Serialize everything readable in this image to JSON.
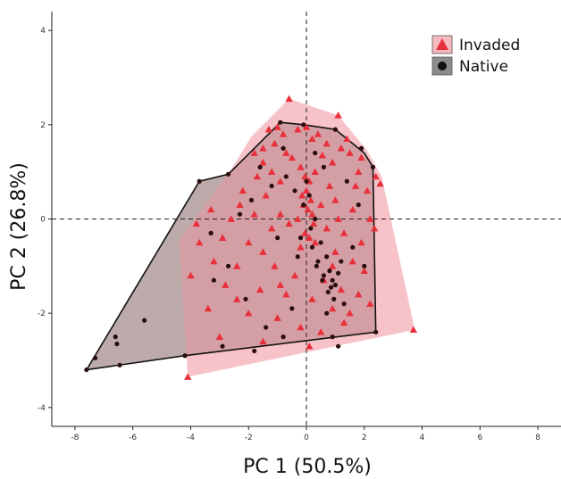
{
  "chart_data": {
    "type": "scatter",
    "xlabel": "PC 1 (50.5%)",
    "ylabel": "PC 2 (26.8%)",
    "xlim": [
      -8.8,
      8.8
    ],
    "ylim": [
      -4.4,
      4.4
    ],
    "x_ticks": [
      -8,
      -6,
      -4,
      -2,
      0,
      2,
      4,
      6,
      8
    ],
    "y_ticks": [
      -4,
      -2,
      0,
      2,
      4
    ],
    "x_tick_labels": [
      "-8",
      "-6",
      "-4",
      "-2",
      "0",
      "2",
      "4",
      "6",
      "8"
    ],
    "y_tick_labels": [
      "-4",
      "-2",
      "0",
      "2",
      "4"
    ],
    "reference_lines": {
      "x": 0,
      "y": 0,
      "style": "dashed"
    },
    "grid": false,
    "legend_position": "top-right",
    "series": [
      {
        "name": "Invaded",
        "marker": "triangle",
        "color": "#e8303c",
        "fill_color": "#f6b9bf",
        "hull": [
          [
            -4.1,
            -3.35
          ],
          [
            3.75,
            -2.35
          ],
          [
            2.6,
            0.9
          ],
          [
            2.1,
            1.45
          ],
          [
            1.1,
            2.2
          ],
          [
            -0.6,
            2.55
          ],
          [
            -1.9,
            1.75
          ],
          [
            -2.6,
            1.05
          ],
          [
            -4.4,
            -0.45
          ]
        ],
        "points": [
          [
            -0.6,
            2.55
          ],
          [
            1.1,
            2.2
          ],
          [
            3.7,
            -2.35
          ],
          [
            -4.1,
            -3.35
          ],
          [
            2.55,
            0.75
          ],
          [
            2.4,
            0.9
          ],
          [
            -0.3,
            1.9
          ],
          [
            -0.8,
            1.8
          ],
          [
            -1.1,
            1.6
          ],
          [
            -1.5,
            1.5
          ],
          [
            -1.8,
            1.4
          ],
          [
            0.2,
            1.7
          ],
          [
            0.7,
            1.6
          ],
          [
            1.2,
            1.5
          ],
          [
            1.5,
            1.4
          ],
          [
            -0.5,
            1.3
          ],
          [
            0.9,
            1.2
          ],
          [
            -1.2,
            1.0
          ],
          [
            -0.2,
            1.1
          ],
          [
            0.3,
            1.0
          ],
          [
            1.8,
            1.0
          ],
          [
            -1.7,
            0.9
          ],
          [
            -0.9,
            0.8
          ],
          [
            0.8,
            0.7
          ],
          [
            2.1,
            0.6
          ],
          [
            -2.2,
            0.6
          ],
          [
            -1.4,
            0.5
          ],
          [
            0.0,
            0.6
          ],
          [
            0.15,
            0.4
          ],
          [
            -0.1,
            0.3
          ],
          [
            0.05,
            0.2
          ],
          [
            -0.3,
            0.0
          ],
          [
            0.2,
            0.1
          ],
          [
            0.5,
            0.3
          ],
          [
            1.0,
            0.4
          ],
          [
            1.6,
            0.2
          ],
          [
            2.2,
            0.0
          ],
          [
            -1.8,
            0.1
          ],
          [
            -2.6,
            0.0
          ],
          [
            -3.3,
            0.2
          ],
          [
            -3.8,
            -0.1
          ],
          [
            -1.2,
            -0.2
          ],
          [
            -0.6,
            -0.1
          ],
          [
            0.7,
            -0.2
          ],
          [
            1.3,
            -0.3
          ],
          [
            1.9,
            -0.5
          ],
          [
            -2.0,
            -0.5
          ],
          [
            -0.2,
            -0.6
          ],
          [
            0.3,
            -0.5
          ],
          [
            1.0,
            -0.7
          ],
          [
            1.6,
            -0.9
          ],
          [
            2.0,
            -1.1
          ],
          [
            -3.2,
            -0.9
          ],
          [
            -2.4,
            -1.0
          ],
          [
            -1.1,
            -1.0
          ],
          [
            -0.4,
            -1.2
          ],
          [
            0.6,
            -1.3
          ],
          [
            1.2,
            -1.5
          ],
          [
            1.8,
            -1.6
          ],
          [
            -2.8,
            -1.4
          ],
          [
            -1.6,
            -1.5
          ],
          [
            -0.7,
            -1.6
          ],
          [
            0.2,
            -1.7
          ],
          [
            0.9,
            -1.9
          ],
          [
            -3.4,
            -1.9
          ],
          [
            -2.0,
            -2.0
          ],
          [
            -1.0,
            -2.1
          ],
          [
            -0.2,
            -2.3
          ],
          [
            0.5,
            -2.4
          ],
          [
            1.3,
            -2.2
          ],
          [
            -3.0,
            -2.5
          ],
          [
            -1.5,
            -2.6
          ],
          [
            0.1,
            -2.7
          ],
          [
            -0.05,
            0.9
          ],
          [
            0.1,
            0.8
          ],
          [
            -0.15,
            0.5
          ],
          [
            0.25,
            -0.1
          ],
          [
            -0.05,
            -0.3
          ],
          [
            0.1,
            -0.4
          ],
          [
            -1.3,
            1.9
          ],
          [
            -1.0,
            1.95
          ],
          [
            0.4,
            1.8
          ],
          [
            0.0,
            1.95
          ],
          [
            1.4,
            1.7
          ],
          [
            1.9,
            1.3
          ],
          [
            -1.5,
            1.2
          ],
          [
            -0.7,
            1.4
          ],
          [
            0.55,
            1.35
          ],
          [
            1.7,
            0.7
          ],
          [
            -2.3,
            0.3
          ],
          [
            -0.9,
            0.1
          ],
          [
            1.1,
            0.0
          ],
          [
            2.35,
            -0.2
          ],
          [
            -2.9,
            -0.4
          ],
          [
            -1.5,
            -0.7
          ],
          [
            0.9,
            -1.0
          ],
          [
            -0.9,
            -1.4
          ],
          [
            1.5,
            -2.0
          ],
          [
            -2.4,
            -1.7
          ],
          [
            -3.7,
            -0.5
          ],
          [
            -4.0,
            -1.2
          ],
          [
            2.2,
            -1.8
          ]
        ]
      },
      {
        "name": "Native",
        "marker": "circle",
        "color": "#2a0d0f",
        "fill_color": "#c9c9c9",
        "hull": [
          [
            -7.6,
            -3.2
          ],
          [
            -4.2,
            -2.9
          ],
          [
            2.4,
            -2.4
          ],
          [
            2.3,
            1.1
          ],
          [
            2.0,
            1.4
          ],
          [
            1.0,
            1.9
          ],
          [
            -0.1,
            2.0
          ],
          [
            -0.9,
            2.05
          ],
          [
            -2.7,
            0.95
          ],
          [
            -3.7,
            0.8
          ]
        ],
        "points": [
          [
            -7.6,
            -3.2
          ],
          [
            -7.3,
            -2.95
          ],
          [
            -6.6,
            -2.5
          ],
          [
            -6.55,
            -2.65
          ],
          [
            -6.45,
            -3.1
          ],
          [
            -5.6,
            -2.15
          ],
          [
            -3.7,
            0.8
          ],
          [
            -0.9,
            2.05
          ],
          [
            -0.1,
            2.0
          ],
          [
            2.3,
            1.1
          ],
          [
            2.4,
            -2.4
          ],
          [
            1.0,
            1.9
          ],
          [
            -2.7,
            0.95
          ],
          [
            -4.2,
            -2.9
          ],
          [
            -3.3,
            -0.3
          ],
          [
            -2.1,
            -1.7
          ],
          [
            -0.8,
            1.5
          ],
          [
            0.3,
            1.4
          ],
          [
            0.6,
            1.1
          ],
          [
            -0.4,
            0.6
          ],
          [
            0.1,
            0.5
          ],
          [
            -0.1,
            0.3
          ],
          [
            0.3,
            0.0
          ],
          [
            0.5,
            -0.5
          ],
          [
            0.7,
            -0.8
          ],
          [
            0.8,
            -1.1
          ],
          [
            0.9,
            -1.3
          ],
          [
            1.0,
            -1.4
          ],
          [
            0.6,
            -1.2
          ],
          [
            0.4,
            -0.9
          ],
          [
            0.2,
            -0.6
          ],
          [
            -0.3,
            -0.8
          ],
          [
            -1.0,
            -0.4
          ],
          [
            -1.9,
            0.4
          ],
          [
            -2.3,
            0.1
          ],
          [
            1.4,
            0.8
          ],
          [
            1.8,
            0.3
          ],
          [
            1.6,
            -0.6
          ],
          [
            2.0,
            -1.0
          ],
          [
            1.3,
            -1.8
          ],
          [
            0.7,
            -2.0
          ],
          [
            -0.5,
            -1.9
          ],
          [
            -1.4,
            -2.3
          ],
          [
            -0.8,
            -2.5
          ],
          [
            0.9,
            -2.5
          ],
          [
            1.1,
            -2.7
          ],
          [
            -0.7,
            0.9
          ],
          [
            0.0,
            0.8
          ],
          [
            0.15,
            -0.2
          ],
          [
            -0.2,
            -0.4
          ],
          [
            0.35,
            -1.0
          ],
          [
            0.55,
            -1.3
          ],
          [
            0.75,
            -1.55
          ],
          [
            0.95,
            -1.7
          ],
          [
            0.85,
            -1.45
          ],
          [
            1.1,
            -1.15
          ],
          [
            1.2,
            -0.9
          ],
          [
            -1.6,
            1.1
          ],
          [
            -1.2,
            0.7
          ],
          [
            -2.7,
            -1.0
          ],
          [
            -3.2,
            -1.3
          ],
          [
            -1.8,
            -2.8
          ],
          [
            -2.9,
            -2.7
          ],
          [
            1.9,
            1.5
          ]
        ]
      }
    ]
  },
  "legend": {
    "items": [
      {
        "label": "Invaded",
        "icon": "triangle",
        "color": "#e8303c",
        "bg": "#f6b9bf"
      },
      {
        "label": "Native",
        "icon": "circle",
        "color": "#111111",
        "bg": "#8c8c8c"
      }
    ]
  }
}
